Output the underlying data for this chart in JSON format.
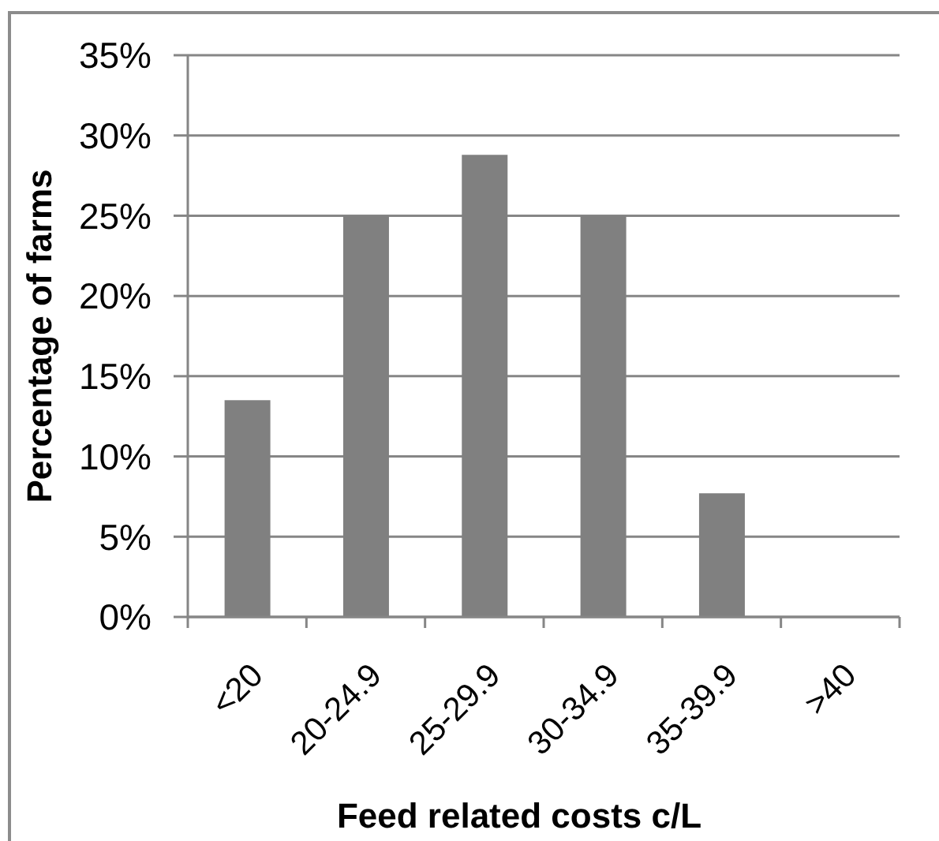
{
  "chart_data": {
    "type": "bar",
    "xlabel": "Feed related costs c/L",
    "ylabel": "Percentage of farms",
    "categories": [
      "<20",
      "20-24.9",
      "25-29.9",
      "30-34.9",
      "35-39.9",
      ">40"
    ],
    "values": [
      13.5,
      25,
      28.8,
      25,
      7.7,
      0
    ],
    "color": "#808080",
    "ylim": [
      0,
      35
    ],
    "yticks": [
      {
        "value": 0,
        "label": "0%"
      },
      {
        "value": 5,
        "label": "5%"
      },
      {
        "value": 10,
        "label": "10%"
      },
      {
        "value": 15,
        "label": "15%"
      },
      {
        "value": 20,
        "label": "20%"
      },
      {
        "value": 25,
        "label": "25%"
      },
      {
        "value": 30,
        "label": "30%"
      },
      {
        "value": 35,
        "label": "35%"
      }
    ],
    "grid": "y"
  }
}
